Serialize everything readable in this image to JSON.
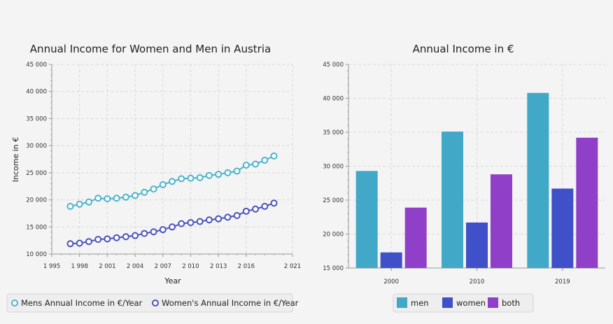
{
  "colors": {
    "men": "#41a8c8",
    "women": "#4050c8",
    "both": "#9040c8",
    "line_men": "#4bb4cc",
    "line_women": "#4a52c0"
  },
  "chart_data": [
    {
      "type": "line",
      "title": "Annual Income for Women and Men in Austria",
      "xlabel": "Year",
      "ylabel": "Income in €",
      "xlim": [
        1995,
        2021
      ],
      "ylim": [
        10000,
        45000
      ],
      "xticks": [
        "1 995",
        "1 998",
        "2 001",
        "2 004",
        "2 007",
        "2 010",
        "2 013",
        "2 016",
        "2 021"
      ],
      "yticks": [
        "10 000",
        "15 000",
        "20 000",
        "25 000",
        "30 000",
        "35 000",
        "40 000",
        "45 000"
      ],
      "x": [
        1997,
        1998,
        1999,
        2000,
        2001,
        2002,
        2003,
        2004,
        2005,
        2006,
        2007,
        2008,
        2009,
        2010,
        2011,
        2012,
        2013,
        2014,
        2015,
        2016,
        2017,
        2018,
        2019
      ],
      "series": [
        {
          "name": "Mens Annual Income in €/Year",
          "values": [
            18800,
            19200,
            19600,
            20300,
            20200,
            20300,
            20500,
            20800,
            21400,
            22000,
            22800,
            23400,
            23900,
            24000,
            24100,
            24500,
            24700,
            25000,
            25300,
            26400,
            26600,
            27300,
            28100
          ]
        },
        {
          "name": "Women's Annual Income in €/Year",
          "values": [
            11900,
            12000,
            12300,
            12700,
            12800,
            13000,
            13200,
            13400,
            13800,
            14100,
            14500,
            15000,
            15600,
            15800,
            16000,
            16300,
            16500,
            16800,
            17100,
            17900,
            18300,
            18800,
            19400
          ]
        }
      ],
      "legend": "bottom"
    },
    {
      "type": "bar",
      "title": "Annual Income in €",
      "categories": [
        "2000",
        "2010",
        "2019"
      ],
      "ylim": [
        15000,
        45000
      ],
      "yticks": [
        "15 000",
        "20 000",
        "25 000",
        "30 000",
        "35 000",
        "40 000",
        "45 000"
      ],
      "series": [
        {
          "name": "men",
          "values": [
            29300,
            35100,
            40800
          ]
        },
        {
          "name": "women",
          "values": [
            17300,
            21700,
            26700
          ]
        },
        {
          "name": "both",
          "values": [
            23900,
            28800,
            34200
          ]
        }
      ],
      "legend": "bottom"
    }
  ]
}
